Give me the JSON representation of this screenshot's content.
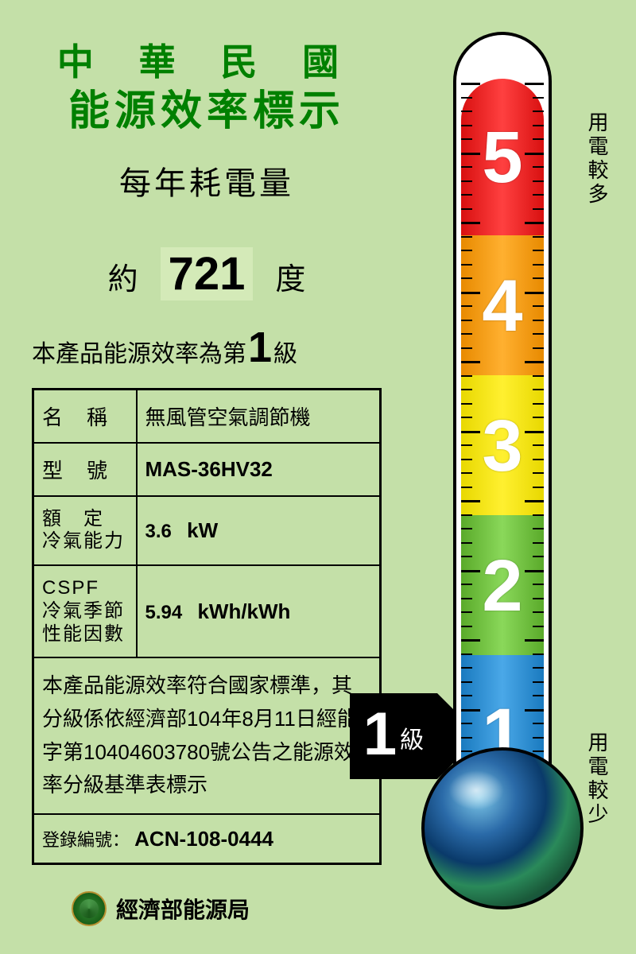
{
  "header": {
    "line1": "中 華 民 國",
    "line2": "能源效率標示"
  },
  "consumption": {
    "label": "每年耗電量",
    "approx": "約",
    "value": "721",
    "unit": "度"
  },
  "grade": {
    "prefix": "本產品能源效率為第",
    "number": "1",
    "suffix": "級"
  },
  "spec": {
    "name_label": "名　稱",
    "name_value": "無風管空氣調節機",
    "model_label": "型　號",
    "model_value": "MAS-36HV32",
    "capacity_label": "額　定\n冷氣能力",
    "capacity_value": "3.6",
    "capacity_unit": "kW",
    "cspf_label": "CSPF\n冷氣季節\n性能因數",
    "cspf_value": "5.94",
    "cspf_unit": "kWh/kWh",
    "compliance": "本產品能源效率符合國家標準，其分級係依經濟部104年8月11日經能字第10404603780號公告之能源效率分級基準表標示",
    "reg_label": "登錄編號：",
    "reg_value": "ACN-108-0444"
  },
  "arrow": {
    "number": "1",
    "suffix": "級"
  },
  "thermo": {
    "segments": [
      {
        "n": "5",
        "color_left": "#d81010",
        "color_mid": "#ff4040"
      },
      {
        "n": "4",
        "color_left": "#e88a00",
        "color_mid": "#ffb030"
      },
      {
        "n": "3",
        "color_left": "#e8d800",
        "color_mid": "#fff030"
      },
      {
        "n": "2",
        "color_left": "#5aaa2a",
        "color_mid": "#8ad85a"
      },
      {
        "n": "1",
        "color_left": "#1a7abf",
        "color_mid": "#4aa8e8"
      }
    ],
    "label_more": "用電較多",
    "label_less": "用電較少"
  },
  "footer": {
    "agency": "經濟部能源局"
  },
  "style": {
    "bg": "#c4e0a8",
    "title_color": "#008000",
    "border_color": "#000000"
  }
}
